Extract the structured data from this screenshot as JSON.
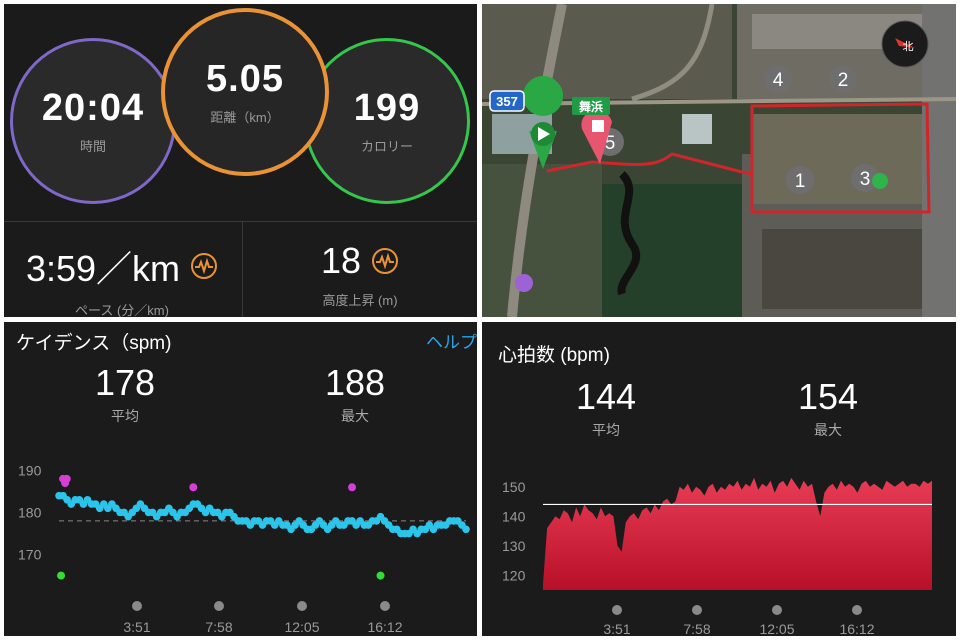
{
  "summary": {
    "time": {
      "value": "20:04",
      "label": "時間"
    },
    "distance": {
      "value": "5.05",
      "label": "距離（km）"
    },
    "calories": {
      "value": "199",
      "label": "カロリー"
    },
    "pace": {
      "value": "3:59／km",
      "label": "ペース (分／km)"
    },
    "elevation": {
      "value": "18",
      "label": "高度上昇 (m)"
    }
  },
  "map": {
    "route_badge": "357",
    "station_label": "舞浜",
    "markers": [
      "1",
      "2",
      "3",
      "4",
      "5"
    ],
    "compass_label": "北"
  },
  "cadence": {
    "title": "ケイデンス（spm)",
    "help": "ヘルプ",
    "avg": {
      "value": "178",
      "label": "平均"
    },
    "max": {
      "value": "188",
      "label": "最大"
    },
    "chart_data": {
      "type": "scatter",
      "title": "ケイデンス（spm)",
      "xlabel": "",
      "ylabel": "",
      "x_ticks": [
        "3:51",
        "7:58",
        "12:05",
        "16:12"
      ],
      "y_ticks": [
        190,
        180,
        170
      ],
      "ylim": [
        163,
        192
      ],
      "avg_line": 178,
      "series": [
        {
          "color": "#2bc4ea",
          "values": [
            184,
            184,
            183,
            182,
            183,
            183,
            182,
            183,
            182,
            182,
            181,
            182,
            181,
            182,
            181,
            180,
            180,
            179,
            180,
            181,
            182,
            181,
            180,
            180,
            179,
            180,
            180,
            181,
            180,
            179,
            180,
            180,
            181,
            182,
            182,
            181,
            180,
            181,
            180,
            180,
            179,
            180,
            180,
            179,
            178,
            178,
            178,
            177,
            178,
            178,
            177,
            178,
            178,
            177,
            178,
            177,
            177,
            176,
            177,
            178,
            177,
            176,
            176,
            177,
            178,
            177,
            176,
            177,
            178,
            177,
            177,
            178,
            178,
            177,
            178,
            177,
            177,
            178,
            178,
            179,
            178,
            177,
            176,
            176,
            175,
            175,
            175,
            176,
            175,
            176,
            176,
            177,
            176,
            177,
            177,
            177,
            178,
            178,
            178,
            177,
            176
          ]
        },
        {
          "color": "#d43fd6",
          "points": [
            [
              0.01,
              188
            ],
            [
              0.015,
              187
            ],
            [
              0.019,
              188
            ],
            [
              0.33,
              186
            ],
            [
              0.72,
              186
            ]
          ]
        },
        {
          "color": "#33dd33",
          "points": [
            [
              0.005,
              165
            ],
            [
              0.79,
              165
            ]
          ]
        }
      ]
    }
  },
  "heart": {
    "title": "心拍数 (bpm)",
    "avg": {
      "value": "144",
      "label": "平均"
    },
    "max": {
      "value": "154",
      "label": "最大"
    },
    "chart_data": {
      "type": "area",
      "title": "心拍数 (bpm)",
      "xlabel": "",
      "ylabel": "",
      "x_ticks": [
        "3:51",
        "7:58",
        "12:05",
        "16:12"
      ],
      "y_ticks": [
        150,
        140,
        130,
        120
      ],
      "ylim": [
        115,
        155
      ],
      "avg_line": 144,
      "color": "#e8384f",
      "values": [
        117,
        136,
        138,
        140,
        139,
        142,
        141,
        138,
        143,
        140,
        144,
        142,
        141,
        139,
        143,
        140,
        141,
        140,
        130,
        128,
        138,
        140,
        141,
        139,
        142,
        143,
        141,
        144,
        142,
        145,
        146,
        144,
        145,
        150,
        149,
        151,
        148,
        150,
        149,
        147,
        150,
        151,
        148,
        150,
        149,
        151,
        150,
        152,
        149,
        151,
        150,
        153,
        149,
        151,
        150,
        152,
        148,
        151,
        152,
        150,
        153,
        151,
        149,
        152,
        150,
        151,
        145,
        140,
        148,
        150,
        151,
        149,
        152,
        150,
        151,
        150,
        148,
        151,
        152,
        150,
        151,
        150,
        149,
        152,
        151,
        150,
        151,
        152,
        150,
        151,
        151,
        150,
        152,
        151,
        152
      ]
    }
  }
}
